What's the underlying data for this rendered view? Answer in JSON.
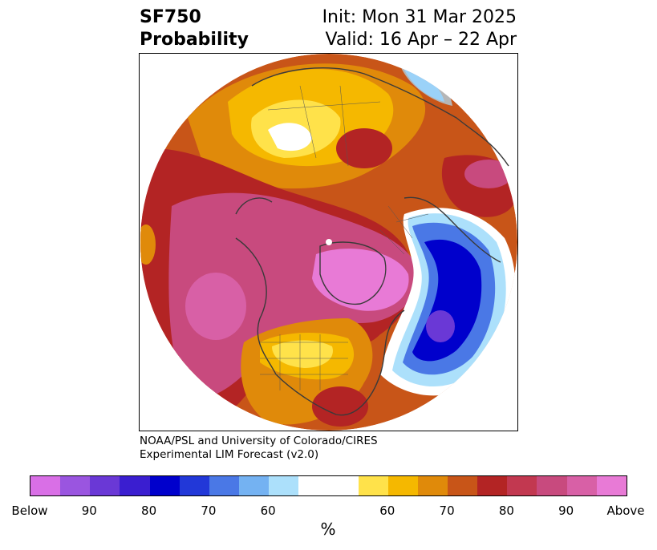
{
  "header": {
    "title_line1": "SF750",
    "title_line2": "Probability",
    "init": "Init: Mon 31 Mar 2025",
    "valid": "Valid: 16 Apr – 22 Apr"
  },
  "credit": {
    "line1": "NOAA/PSL and University of Colorado/CIRES",
    "line2": "Experimental LIM Forecast (v2.0)"
  },
  "colorbar": {
    "unit": "%",
    "colors": [
      "#d96fe6",
      "#9a55e0",
      "#6a38d6",
      "#3a1ed0",
      "#0000cc",
      "#2238d8",
      "#4a78e6",
      "#74b2f2",
      "#ace0fb",
      "#ffffff",
      "#ffffff",
      "#ffe24a",
      "#f5b800",
      "#e08a0a",
      "#c85518",
      "#b32424",
      "#c23850",
      "#c84a7e",
      "#d860a6",
      "#e87ad6"
    ],
    "ticks": [
      "Below",
      "90",
      "80",
      "70",
      "60",
      "60",
      "70",
      "80",
      "90",
      "Above"
    ],
    "tick_values": [
      0,
      2,
      4,
      6,
      8,
      12,
      14,
      16,
      18,
      20
    ]
  },
  "map": {
    "projection": "north-polar-stereographic",
    "colors": {
      "above_strong": "#e87ad6",
      "above_high": "#c84a7e",
      "above_mid": "#b32424",
      "above_low": "#e08a0a",
      "above_weak": "#ffe24a",
      "below_strong": "#0000cc",
      "below_mid": "#4a78e6",
      "below_weak": "#ace0fb"
    }
  }
}
